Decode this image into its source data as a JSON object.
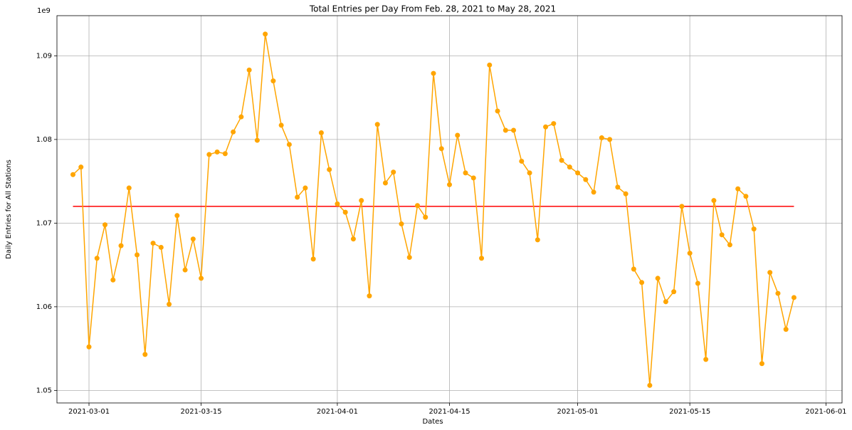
{
  "chart_data": {
    "type": "line",
    "title": "Total Entries per Day From Feb. 28, 2021 to May 28, 2021",
    "x_label": "Dates",
    "y_label": "Daily Entries for All Stations",
    "y_offset_label": "1e9",
    "color": "#ffa500",
    "markers": true,
    "grid": true,
    "x": [
      "2021-02-27",
      "2021-02-28",
      "2021-03-01",
      "2021-03-02",
      "2021-03-03",
      "2021-03-04",
      "2021-03-05",
      "2021-03-06",
      "2021-03-07",
      "2021-03-08",
      "2021-03-09",
      "2021-03-10",
      "2021-03-11",
      "2021-03-12",
      "2021-03-13",
      "2021-03-14",
      "2021-03-15",
      "2021-03-16",
      "2021-03-17",
      "2021-03-18",
      "2021-03-19",
      "2021-03-20",
      "2021-03-21",
      "2021-03-22",
      "2021-03-23",
      "2021-03-24",
      "2021-03-25",
      "2021-03-26",
      "2021-03-27",
      "2021-03-28",
      "2021-03-29",
      "2021-03-30",
      "2021-03-31",
      "2021-04-01",
      "2021-04-02",
      "2021-04-03",
      "2021-04-04",
      "2021-04-05",
      "2021-04-06",
      "2021-04-07",
      "2021-04-08",
      "2021-04-09",
      "2021-04-10",
      "2021-04-11",
      "2021-04-12",
      "2021-04-13",
      "2021-04-14",
      "2021-04-15",
      "2021-04-16",
      "2021-04-17",
      "2021-04-18",
      "2021-04-19",
      "2021-04-20",
      "2021-04-21",
      "2021-04-22",
      "2021-04-23",
      "2021-04-24",
      "2021-04-25",
      "2021-04-26",
      "2021-04-27",
      "2021-04-28",
      "2021-04-29",
      "2021-04-30",
      "2021-05-01",
      "2021-05-02",
      "2021-05-03",
      "2021-05-04",
      "2021-05-05",
      "2021-05-06",
      "2021-05-07",
      "2021-05-08",
      "2021-05-09",
      "2021-05-10",
      "2021-05-11",
      "2021-05-12",
      "2021-05-13",
      "2021-05-14",
      "2021-05-15",
      "2021-05-16",
      "2021-05-17",
      "2021-05-18",
      "2021-05-19",
      "2021-05-20",
      "2021-05-21",
      "2021-05-22",
      "2021-05-23",
      "2021-05-24",
      "2021-05-25",
      "2021-05-26",
      "2021-05-27",
      "2021-05-28"
    ],
    "values": [
      1.0758,
      1.0767,
      1.0552,
      1.0658,
      1.0698,
      1.0632,
      1.0673,
      1.0742,
      1.0662,
      1.0543,
      1.0676,
      1.0671,
      1.0603,
      1.0709,
      1.0644,
      1.0681,
      1.0634,
      1.0782,
      1.0785,
      1.0783,
      1.0809,
      1.0827,
      1.0883,
      1.0799,
      1.0926,
      1.087,
      1.0817,
      1.0794,
      1.0731,
      1.0742,
      1.0657,
      1.0808,
      1.0764,
      1.0723,
      1.0713,
      1.0681,
      1.0727,
      1.0613,
      1.0818,
      1.0748,
      1.0761,
      1.0699,
      1.0659,
      1.0721,
      1.0707,
      1.0879,
      1.0789,
      1.0746,
      1.0805,
      1.076,
      1.0754,
      1.0658,
      1.0889,
      1.0834,
      1.0811,
      1.0811,
      1.0774,
      1.076,
      1.068,
      1.0815,
      1.0819,
      1.0775,
      1.0767,
      1.076,
      1.0752,
      1.0737,
      1.0802,
      1.08,
      1.0743,
      1.0735,
      1.0645,
      1.0629,
      1.0506,
      1.0634,
      1.0606,
      1.0618,
      1.072,
      1.0664,
      1.0628,
      1.0537,
      1.0727,
      1.0686,
      1.0674,
      1.0741,
      1.0732,
      1.0693,
      1.0532,
      1.0641,
      1.0616,
      1.0573,
      1.0611
    ],
    "mean_line": {
      "value": 1.072,
      "color": "#ff0000"
    },
    "xlim": [
      "2021-02-25",
      "2021-06-03"
    ],
    "xticks": [
      "2021-03-01",
      "2021-03-15",
      "2021-04-01",
      "2021-04-15",
      "2021-05-01",
      "2021-05-15",
      "2021-06-01"
    ],
    "ylim": [
      1.0485,
      1.0948
    ],
    "yticks": [
      1.05,
      1.06,
      1.07,
      1.08,
      1.09
    ]
  }
}
